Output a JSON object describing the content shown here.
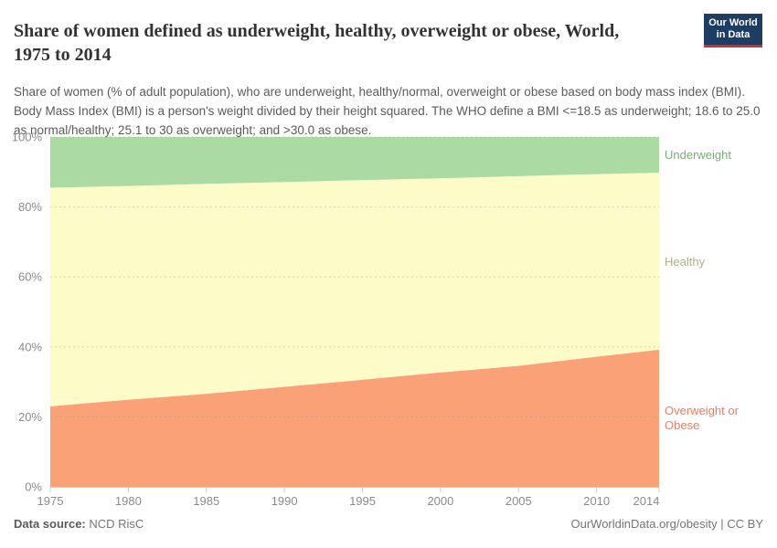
{
  "header": {
    "title": "Share of women defined as underweight, healthy, overweight or obese, World, 1975 to 2014",
    "subtitle": "Share of women (% of adult population), who are underweight, healthy/normal, overweight or obese based on body mass index (BMI). Body Mass Index (BMI) is a person's weight divided by their height squared. The WHO define a BMI <=18.5 as underweight; 18.6 to 25.0 as normal/healthy; 25.1 to 30 as overweight; and >30.0 as obese.",
    "logo": {
      "line1": "Our World",
      "line2": "in Data",
      "bg_color": "#1d3d63",
      "accent_color": "#cf2e36"
    }
  },
  "chart_data": {
    "type": "area",
    "stacked": true,
    "title": "Share of women defined as underweight, healthy, overweight or obese, World, 1975 to 2014",
    "xlabel": "",
    "ylabel": "",
    "x": [
      1975,
      1980,
      1985,
      1990,
      1995,
      2000,
      2005,
      2010,
      2014
    ],
    "series": [
      {
        "name": "Overweight or Obese",
        "values": [
          23.0,
          24.9,
          26.6,
          28.6,
          30.6,
          32.7,
          34.6,
          37.2,
          39.2
        ],
        "color": "#fba178",
        "label_color": "#ee7d5f"
      },
      {
        "name": "Healthy",
        "values": [
          62.5,
          61.1,
          60.0,
          58.5,
          57.1,
          55.5,
          54.2,
          52.2,
          50.6
        ],
        "color": "#fdfbc7",
        "label_color": "#b1ae8c"
      },
      {
        "name": "Underweight",
        "values": [
          14.5,
          14.0,
          13.4,
          12.9,
          12.3,
          11.8,
          11.2,
          10.6,
          10.2
        ],
        "color": "#abdba3",
        "label_color": "#75b077"
      }
    ],
    "ylim": [
      0,
      100
    ],
    "y_tick_values": [
      0,
      20,
      40,
      60,
      80,
      100
    ],
    "y_tick_suffix": "%",
    "x_ticks": [
      1975,
      1980,
      1985,
      1990,
      1995,
      2000,
      2005,
      2010,
      2014
    ],
    "grid": "dashed-horizontal",
    "legend_position": "right-inline",
    "axis_text_color": "#8b8b8b"
  },
  "footer": {
    "source_label": "Data source:",
    "source_value": " NCD RisC",
    "right_text": "OurWorldinData.org/obesity | CC BY"
  }
}
